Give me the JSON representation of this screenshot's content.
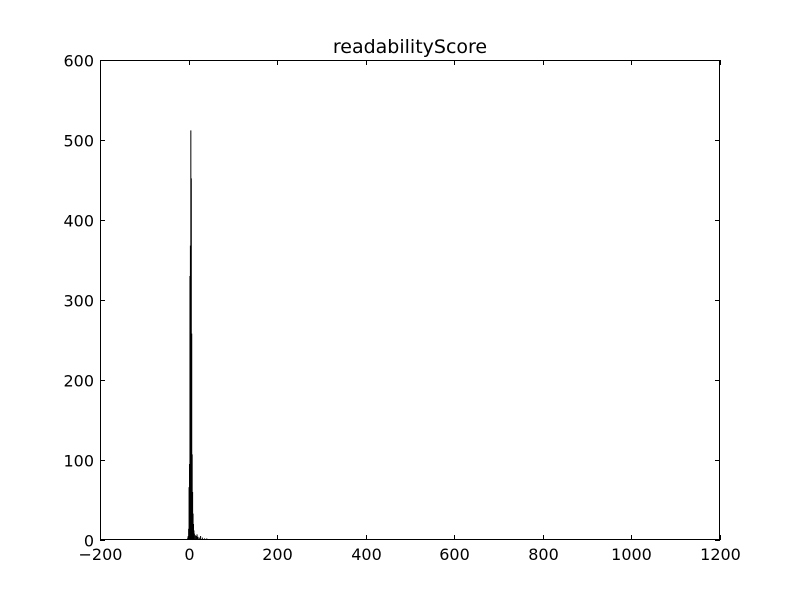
{
  "chart_data": {
    "type": "bar",
    "title": "readabilityScore",
    "xlabel": "",
    "ylabel": "",
    "xlim": [
      -200,
      1200
    ],
    "ylim": [
      0,
      600
    ],
    "xticks": [
      -200,
      0,
      200,
      400,
      600,
      800,
      1000,
      1200
    ],
    "xtick_labels": [
      "−200",
      "0",
      "200",
      "400",
      "600",
      "800",
      "1000",
      "1200"
    ],
    "yticks": [
      0,
      100,
      200,
      300,
      400,
      500,
      600
    ],
    "ytick_labels": [
      "0",
      "100",
      "200",
      "300",
      "400",
      "500",
      "600"
    ],
    "grid": false,
    "bar_color": "#000000",
    "bin_width": 1,
    "bins": [
      {
        "x": -3,
        "y": 3
      },
      {
        "x": -2,
        "y": 5
      },
      {
        "x": -1,
        "y": 14
      },
      {
        "x": 0,
        "y": 66
      },
      {
        "x": 1,
        "y": 95
      },
      {
        "x": 2,
        "y": 330
      },
      {
        "x": 3,
        "y": 368
      },
      {
        "x": 4,
        "y": 512
      },
      {
        "x": 5,
        "y": 452
      },
      {
        "x": 6,
        "y": 258
      },
      {
        "x": 7,
        "y": 107
      },
      {
        "x": 8,
        "y": 60
      },
      {
        "x": 9,
        "y": 33
      },
      {
        "x": 10,
        "y": 20
      },
      {
        "x": 11,
        "y": 12
      },
      {
        "x": 12,
        "y": 8
      },
      {
        "x": 14,
        "y": 6
      },
      {
        "x": 16,
        "y": 5
      },
      {
        "x": 18,
        "y": 7
      },
      {
        "x": 20,
        "y": 4
      },
      {
        "x": 23,
        "y": 3
      },
      {
        "x": 26,
        "y": 5
      },
      {
        "x": 30,
        "y": 3
      },
      {
        "x": 35,
        "y": 2
      },
      {
        "x": 40,
        "y": 2
      },
      {
        "x": 48,
        "y": 1
      },
      {
        "x": 60,
        "y": 1
      },
      {
        "x": 75,
        "y": 1
      },
      {
        "x": 100,
        "y": 1
      },
      {
        "x": 145,
        "y": 1
      },
      {
        "x": 240,
        "y": 1
      },
      {
        "x": 275,
        "y": 1
      },
      {
        "x": 1035,
        "y": 1
      }
    ]
  }
}
